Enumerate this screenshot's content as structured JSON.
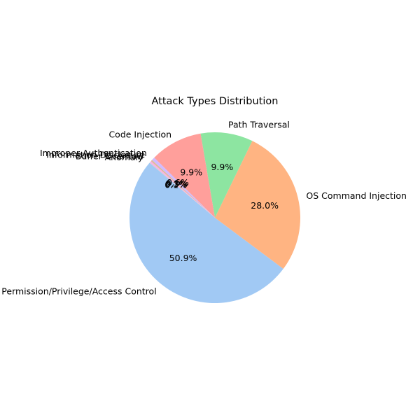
{
  "chart_data": {
    "type": "pie",
    "title": "Attack Types Distribution",
    "autopct": true,
    "start_angle_deg": 140,
    "direction": "counterclockwise",
    "slices": [
      {
        "label": "Permission/Privilege/Access Control",
        "value": 50.9,
        "pct_label": "50.9%",
        "color": "#a1c9f4"
      },
      {
        "label": "OS Command Injection",
        "value": 28.0,
        "pct_label": "28.0%",
        "color": "#ffb482"
      },
      {
        "label": "Path Traversal",
        "value": 9.9,
        "pct_label": "9.9%",
        "color": "#8de5a1"
      },
      {
        "label": "Code Injection",
        "value": 9.9,
        "pct_label": "9.9%",
        "color": "#ff9f9b"
      },
      {
        "label": "Improper Authentication",
        "value": 0.6,
        "pct_label": "0.6%",
        "color": "#d0bbff"
      },
      {
        "label": "Information Disclosure",
        "value": 0.3,
        "pct_label": "0.3%",
        "color": "#debb9b"
      },
      {
        "label": "Buffer Overflow",
        "value": 0.3,
        "pct_label": "0.3%",
        "color": "#fab0e4"
      },
      {
        "label": "Anomaly",
        "value": 0.1,
        "pct_label": "0.1%",
        "color": "#cfcfcf"
      }
    ]
  }
}
